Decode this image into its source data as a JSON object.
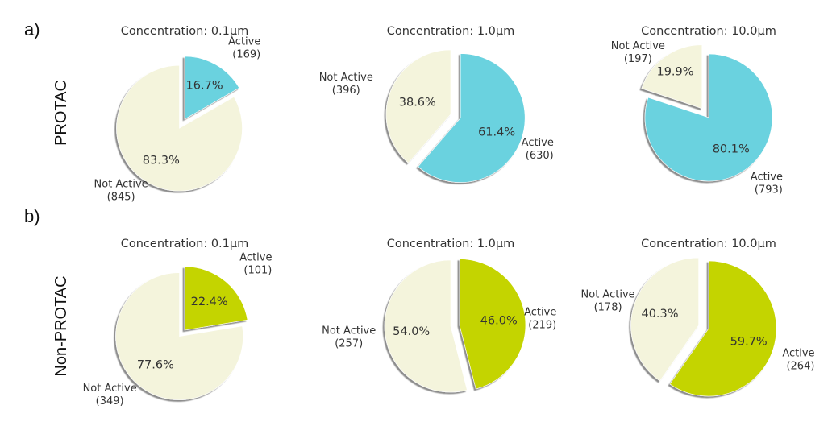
{
  "panel_labels": {
    "a": "a)",
    "b": "b)"
  },
  "row_labels": {
    "protac": "PROTAC",
    "non_protac": "Non-PROTAC"
  },
  "colors": {
    "not_active": "#f4f4dc",
    "protac_active": "#6ad2df",
    "non_protac_active": "#c4d400"
  },
  "chart_data": [
    {
      "type": "pie",
      "row": "PROTAC",
      "title": "Concentration: 0.1μm",
      "slices": [
        {
          "label": "Active",
          "count_text": "(169)",
          "count": 169,
          "pct_text": "16.7%",
          "value": 16.7,
          "color": "#6ad2df"
        },
        {
          "label": "Not Active",
          "count_text": "(845)",
          "count": 845,
          "pct_text": "83.3%",
          "value": 83.3,
          "color": "#f4f4dc"
        }
      ]
    },
    {
      "type": "pie",
      "row": "PROTAC",
      "title": "Concentration: 1.0μm",
      "slices": [
        {
          "label": "Active",
          "count_text": "(630)",
          "count": 630,
          "pct_text": "61.4%",
          "value": 61.4,
          "color": "#6ad2df"
        },
        {
          "label": "Not Active",
          "count_text": "(396)",
          "count": 396,
          "pct_text": "38.6%",
          "value": 38.6,
          "color": "#f4f4dc"
        }
      ]
    },
    {
      "type": "pie",
      "row": "PROTAC",
      "title": "Concentration: 10.0μm",
      "slices": [
        {
          "label": "Active",
          "count_text": "(793)",
          "count": 793,
          "pct_text": "80.1%",
          "value": 80.1,
          "color": "#6ad2df"
        },
        {
          "label": "Not Active",
          "count_text": "(197)",
          "count": 197,
          "pct_text": "19.9%",
          "value": 19.9,
          "color": "#f4f4dc"
        }
      ]
    },
    {
      "type": "pie",
      "row": "Non-PROTAC",
      "title": "Concentration: 0.1μm",
      "slices": [
        {
          "label": "Active",
          "count_text": "(101)",
          "count": 101,
          "pct_text": "22.4%",
          "value": 22.4,
          "color": "#c4d400"
        },
        {
          "label": "Not Active",
          "count_text": "(349)",
          "count": 349,
          "pct_text": "77.6%",
          "value": 77.6,
          "color": "#f4f4dc"
        }
      ]
    },
    {
      "type": "pie",
      "row": "Non-PROTAC",
      "title": "Concentration: 1.0μm",
      "slices": [
        {
          "label": "Active",
          "count_text": "(219)",
          "count": 219,
          "pct_text": "46.0%",
          "value": 46.0,
          "color": "#c4d400"
        },
        {
          "label": "Not Active",
          "count_text": "(257)",
          "count": 257,
          "pct_text": "54.0%",
          "value": 54.0,
          "color": "#f4f4dc"
        }
      ]
    },
    {
      "type": "pie",
      "row": "Non-PROTAC",
      "title": "Concentration: 10.0μm",
      "slices": [
        {
          "label": "Active",
          "count_text": "(264)",
          "count": 264,
          "pct_text": "59.7%",
          "value": 59.7,
          "color": "#c4d400"
        },
        {
          "label": "Not Active",
          "count_text": "(178)",
          "count": 178,
          "pct_text": "40.3%",
          "value": 40.3,
          "color": "#f4f4dc"
        }
      ]
    }
  ]
}
